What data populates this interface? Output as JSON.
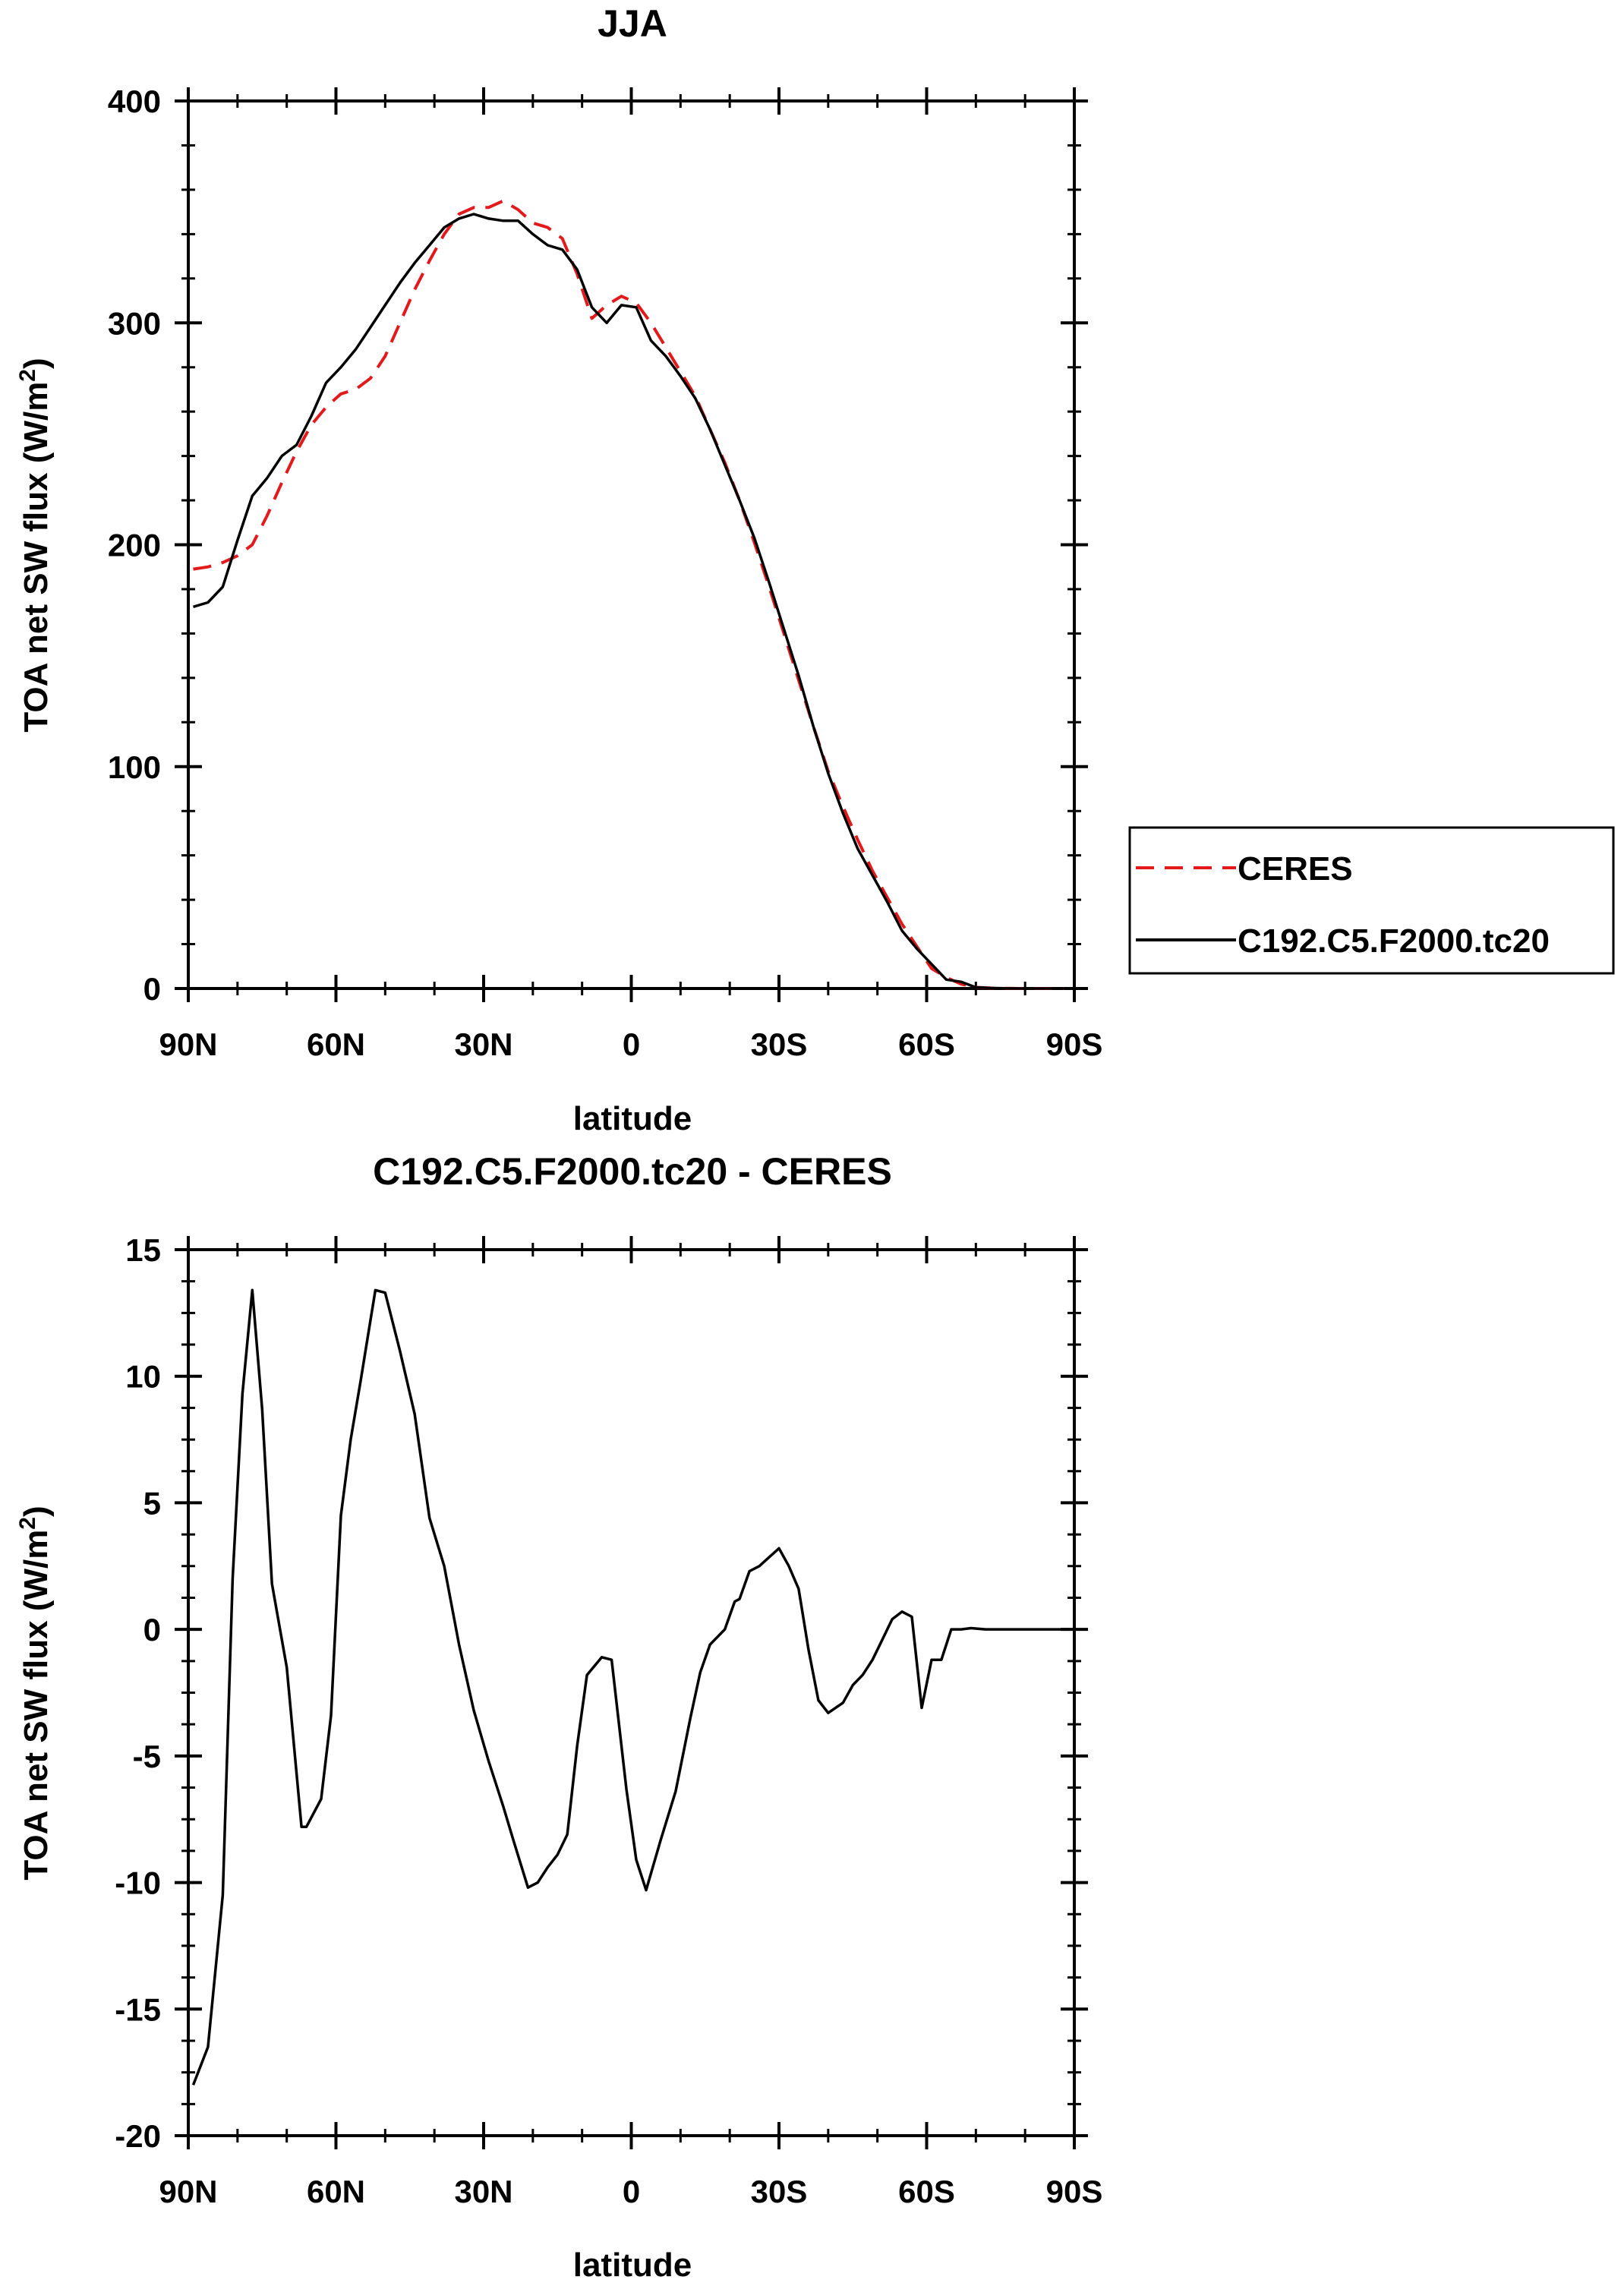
{
  "chart_data": [
    {
      "type": "line",
      "title": "JJA",
      "xlabel": "latitude",
      "ylabel": "TOA net SW flux (W/m",
      "ylabel_sup": "2",
      "ylabel_close": ")",
      "x_ticks": [
        "90N",
        "60N",
        "30N",
        "0",
        "30S",
        "60S",
        "90S"
      ],
      "x_tick_values": [
        90,
        60,
        30,
        0,
        -30,
        -60,
        -90
      ],
      "xlim": [
        90,
        -90
      ],
      "ylim": [
        0,
        400
      ],
      "y_ticks": [
        "0",
        "100",
        "200",
        "300",
        "400"
      ],
      "y_tick_values": [
        0,
        100,
        200,
        300,
        400
      ],
      "legend": {
        "position": "right-outside",
        "entries": [
          "CERES",
          "C192.C5.F2000.tc20"
        ]
      },
      "series": [
        {
          "name": "CERES",
          "color": "#e31a1c",
          "dash": "dashed",
          "x": [
            89,
            86,
            83,
            80,
            77,
            74,
            71,
            68,
            65,
            62,
            59,
            56,
            53,
            50,
            47,
            44,
            41,
            38,
            35,
            32,
            29,
            26,
            23,
            20,
            17,
            14,
            11,
            8,
            5,
            2,
            -1,
            -4,
            -7,
            -10,
            -13,
            -16,
            -19,
            -22,
            -25,
            -28,
            -31,
            -34,
            -37,
            -40,
            -43,
            -46,
            -49,
            -52,
            -55,
            -58,
            -61,
            -64,
            -67,
            -70,
            -73,
            -76,
            -79,
            -82,
            -85,
            -88
          ],
          "y": [
            189,
            190,
            192,
            195,
            200,
            213,
            228,
            242,
            254,
            262,
            268,
            270,
            275,
            285,
            300,
            315,
            328,
            340,
            349,
            352,
            352,
            355,
            351,
            345,
            343,
            338,
            322,
            302,
            308,
            312,
            309,
            300,
            289,
            278,
            267,
            252,
            237,
            220,
            201,
            181,
            160,
            139,
            118,
            98,
            82,
            67,
            53,
            41,
            29,
            19,
            9,
            5,
            2,
            0.5,
            0.2,
            0.1,
            0,
            0,
            0,
            0
          ]
        },
        {
          "name": "C192.C5.F2000.tc20",
          "color": "#000000",
          "dash": "solid",
          "x": [
            89,
            86,
            83,
            80,
            77,
            74,
            71,
            68,
            65,
            62,
            59,
            56,
            53,
            50,
            47,
            44,
            41,
            38,
            35,
            32,
            29,
            26,
            23,
            20,
            17,
            14,
            11,
            8,
            5,
            2,
            -1,
            -4,
            -7,
            -10,
            -13,
            -16,
            -19,
            -22,
            -25,
            -28,
            -31,
            -34,
            -37,
            -40,
            -43,
            -46,
            -49,
            -52,
            -55,
            -58,
            -61,
            -64,
            -67,
            -70,
            -73,
            -76,
            -79,
            -82,
            -85,
            -88
          ],
          "y": [
            172,
            174,
            181,
            202,
            222,
            230,
            240,
            245,
            258,
            273,
            280,
            288,
            298,
            308,
            318,
            327,
            335,
            343,
            347,
            349,
            347,
            346,
            346,
            340,
            335,
            333,
            324,
            307,
            300,
            308,
            307,
            292,
            285,
            276,
            266,
            252,
            236,
            220,
            203,
            183,
            162,
            141,
            118,
            97,
            79,
            63,
            51,
            39,
            26,
            18,
            11,
            4,
            3,
            0.5,
            0.2,
            0.1,
            0,
            0,
            0,
            0
          ]
        }
      ]
    },
    {
      "type": "line",
      "title": "C192.C5.F2000.tc20 - CERES",
      "xlabel": "latitude",
      "ylabel": "TOA net SW flux (W/m",
      "ylabel_sup": "2",
      "ylabel_close": ")",
      "x_ticks": [
        "90N",
        "60N",
        "30N",
        "0",
        "30S",
        "60S",
        "90S"
      ],
      "x_tick_values": [
        90,
        60,
        30,
        0,
        -30,
        -60,
        -90
      ],
      "xlim": [
        90,
        -90
      ],
      "ylim": [
        -20,
        15
      ],
      "y_ticks": [
        "-20",
        "-15",
        "-10",
        "-5",
        "0",
        "5",
        "10",
        "15"
      ],
      "y_tick_values": [
        -20,
        -15,
        -10,
        -5,
        0,
        5,
        10,
        15
      ],
      "series": [
        {
          "name": "C192.C5.F2000.tc20 - CERES",
          "color": "#000000",
          "dash": "solid",
          "x": [
            89,
            86,
            83,
            81,
            79,
            77,
            75,
            73,
            70,
            67,
            66,
            63,
            61,
            59,
            57,
            55,
            52,
            50,
            47,
            44,
            41,
            38,
            35,
            32,
            29,
            26,
            24,
            21,
            19,
            17,
            15,
            13,
            11,
            9,
            6,
            4,
            1,
            -1,
            -3,
            -6,
            -9,
            -12,
            -14,
            -16,
            -19,
            -21,
            -22,
            -24,
            -26,
            -30,
            -32,
            -34,
            -36,
            -38,
            -40,
            -43,
            -45,
            -47,
            -49,
            -51,
            -53,
            -55,
            -57,
            -59,
            -61,
            -63,
            -65,
            -67,
            -69,
            -72,
            -74,
            -77,
            -79,
            -82,
            -85,
            -88,
            -90
          ],
          "y": [
            -18,
            -16.5,
            -10.5,
            2,
            9.3,
            13.4,
            8.7,
            1.8,
            -1.5,
            -7.8,
            -7.8,
            -6.7,
            -3.4,
            4.5,
            7.5,
            9.8,
            13.4,
            13.3,
            11,
            8.5,
            4.4,
            2.5,
            -0.6,
            -3.2,
            -5.2,
            -7,
            -8.3,
            -10.2,
            -10,
            -9.4,
            -8.9,
            -8.1,
            -4.6,
            -1.8,
            -1.1,
            -1.2,
            -6.3,
            -9.1,
            -10.3,
            -8.3,
            -6.4,
            -3.5,
            -1.7,
            -0.6,
            0,
            1.1,
            1.2,
            2.3,
            2.5,
            3.2,
            2.5,
            1.6,
            -0.8,
            -2.8,
            -3.3,
            -2.9,
            -2.2,
            -1.8,
            -1.2,
            -0.4,
            0.4,
            0.7,
            0.5,
            -3.1,
            -1.2,
            -1.2,
            0,
            0,
            0.05,
            0,
            0,
            0,
            0,
            0,
            0,
            0,
            0
          ]
        }
      ]
    }
  ]
}
